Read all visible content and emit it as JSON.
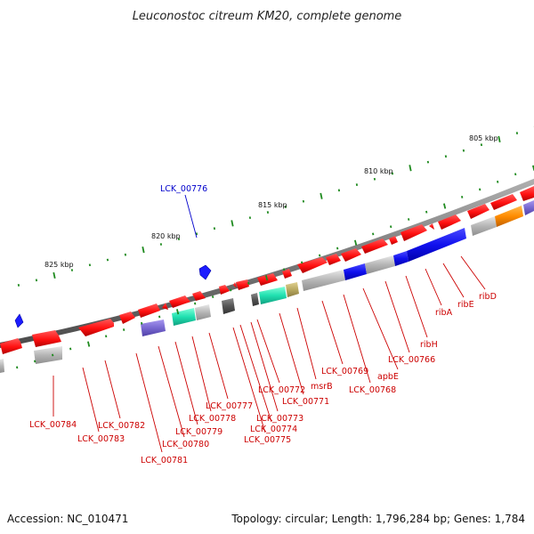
{
  "title": "Leuconostoc citreum KM20, complete genome",
  "footer": {
    "accession": "Accession: NC_010471",
    "summary": "Topology: circular; Length: 1,796,284 bp; Genes: 1,784"
  },
  "colors": {
    "backbone": "#7a7a7a",
    "forward_gene": "#ff1010",
    "tick": "#1e8a1e",
    "label_red": "#cc0000",
    "label_blue": "#0000cc",
    "cog_gray": "#b0b0b0",
    "cog_blue": "#1010ee",
    "cog_teal": "#20e0b0",
    "cog_purple": "#8070d0",
    "cog_orange": "#ff8c00",
    "cog_olive": "#b8a860",
    "cog_dark": "#555555"
  },
  "scale_labels": [
    "805 kbp",
    "810 kbp",
    "815 kbp",
    "820 kbp",
    "825 kbp"
  ],
  "genes": [
    {
      "id": "LCK_00784",
      "strand": "forward",
      "cog": "cog_gray",
      "label_color": "label_red"
    },
    {
      "id": "LCK_00783",
      "strand": "forward",
      "cog": "none",
      "label_color": "label_red"
    },
    {
      "id": "LCK_00782",
      "strand": "forward",
      "cog": "none",
      "label_color": "label_red"
    },
    {
      "id": "LCK_00781",
      "strand": "forward",
      "cog": "cog_purple",
      "label_color": "label_red"
    },
    {
      "id": "LCK_00780",
      "strand": "forward",
      "cog": "cog_teal",
      "label_color": "label_red"
    },
    {
      "id": "LCK_00779",
      "strand": "forward",
      "cog": "cog_gray",
      "label_color": "label_red"
    },
    {
      "id": "LCK_00778",
      "strand": "forward",
      "cog": "none",
      "label_color": "label_red"
    },
    {
      "id": "LCK_00777",
      "strand": "forward",
      "cog": "none",
      "label_color": "label_red"
    },
    {
      "id": "LCK_00776",
      "strand": "reverse",
      "cog": "none",
      "label_color": "label_blue"
    },
    {
      "id": "LCK_00775",
      "strand": "forward",
      "cog": "cog_dark",
      "label_color": "label_red"
    },
    {
      "id": "LCK_00774",
      "strand": "forward",
      "cog": "none",
      "label_color": "label_red"
    },
    {
      "id": "LCK_00773",
      "strand": "forward",
      "cog": "none",
      "label_color": "label_red"
    },
    {
      "id": "LCK_00772",
      "strand": "forward",
      "cog": "cog_dark",
      "label_color": "label_red"
    },
    {
      "id": "LCK_00771",
      "strand": "forward",
      "cog": "cog_teal",
      "label_color": "label_red"
    },
    {
      "id": "msrB",
      "strand": "forward",
      "cog": "cog_olive",
      "label_color": "label_red"
    },
    {
      "id": "LCK_00769",
      "strand": "forward",
      "cog": "cog_gray",
      "label_color": "label_red"
    },
    {
      "id": "LCK_00768",
      "strand": "forward",
      "cog": "cog_blue",
      "label_color": "label_red"
    },
    {
      "id": "apbE",
      "strand": "forward",
      "cog": "cog_gray",
      "label_color": "label_red"
    },
    {
      "id": "LCK_00766",
      "strand": "forward",
      "cog": "cog_blue",
      "label_color": "label_red"
    },
    {
      "id": "ribH",
      "strand": "forward",
      "cog": "cog_blue",
      "label_color": "label_red"
    },
    {
      "id": "ribA",
      "strand": "forward",
      "cog": "cog_blue",
      "label_color": "label_red"
    },
    {
      "id": "ribE",
      "strand": "forward",
      "cog": "cog_gray",
      "label_color": "label_red"
    },
    {
      "id": "ribD",
      "strand": "forward",
      "cog": "cog_orange",
      "label_color": "label_red"
    }
  ]
}
